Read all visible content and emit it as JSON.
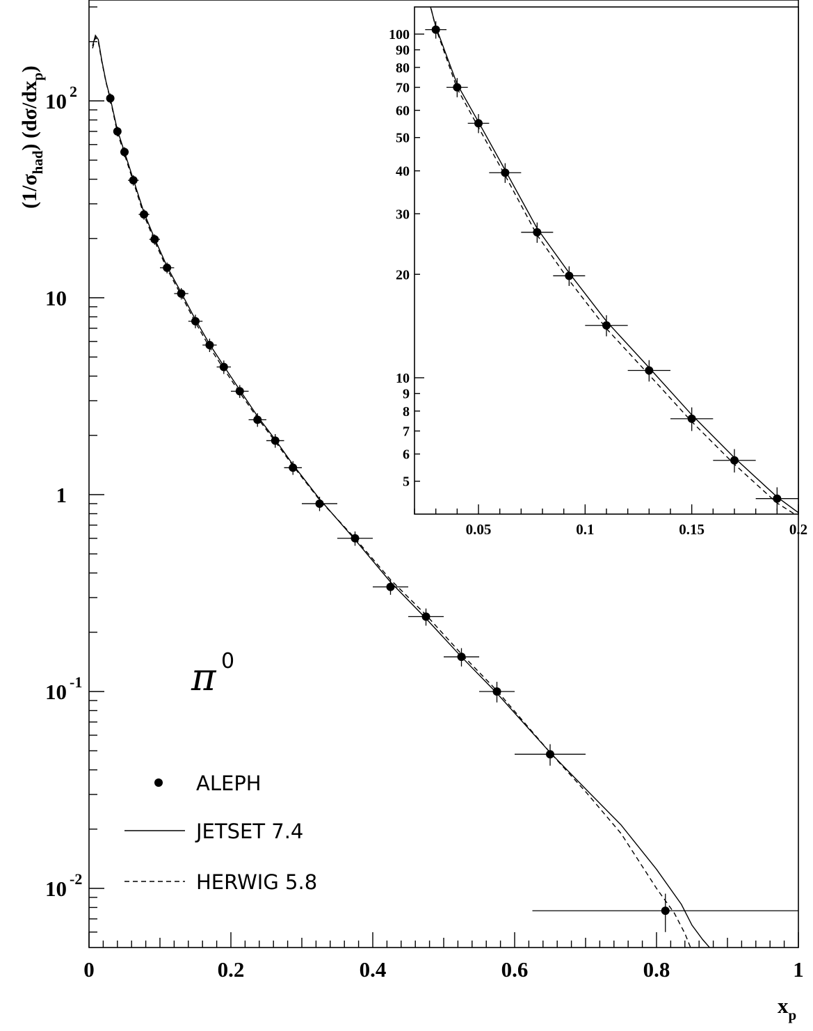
{
  "chart_data": [
    {
      "type": "scatter",
      "scale_y": "log",
      "xlim": [
        0,
        1
      ],
      "ylim": [
        0.005,
        500
      ],
      "xticks": [
        "0",
        "0.2",
        "0.4",
        "0.6",
        "0.8",
        "1"
      ],
      "xlabel_main": "x",
      "xlabel_sub": "p",
      "ylabel": "(1/σhad) (dσ/dxp)",
      "ytick_labels": [
        {
          "value": 100,
          "base": "10",
          "exp": "2"
        },
        {
          "value": 10,
          "base": "10",
          "exp": ""
        },
        {
          "value": 1,
          "base": "1",
          "exp": ""
        },
        {
          "value": 0.1,
          "base": "10",
          "exp": "-1"
        },
        {
          "value": 0.01,
          "base": "10",
          "exp": "-2"
        }
      ],
      "annotation": {
        "particle": "π",
        "charge": "0"
      },
      "legend": {
        "position": "bottom-left",
        "aleph": "ALEPH",
        "jetset": "JETSET 7.4",
        "herwig": "HERWIG 5.8"
      },
      "series": [
        {
          "name": "ALEPH",
          "style": "points",
          "points": [
            {
              "x": 0.03,
              "y": 103,
              "xerr": 0.005,
              "yerr": 6
            },
            {
              "x": 0.04,
              "y": 70,
              "xerr": 0.005,
              "yerr": 4
            },
            {
              "x": 0.05,
              "y": 55,
              "xerr": 0.005,
              "yerr": 3.2
            },
            {
              "x": 0.0625,
              "y": 39.5,
              "xerr": 0.0075,
              "yerr": 2.4
            },
            {
              "x": 0.0775,
              "y": 26.5,
              "xerr": 0.0075,
              "yerr": 1.6
            },
            {
              "x": 0.0925,
              "y": 19.8,
              "xerr": 0.0075,
              "yerr": 1.2
            },
            {
              "x": 0.11,
              "y": 14.2,
              "xerr": 0.01,
              "yerr": 0.9
            },
            {
              "x": 0.13,
              "y": 10.5,
              "xerr": 0.01,
              "yerr": 0.7
            },
            {
              "x": 0.15,
              "y": 7.6,
              "xerr": 0.01,
              "yerr": 0.6
            },
            {
              "x": 0.17,
              "y": 5.75,
              "xerr": 0.01,
              "yerr": 0.45
            },
            {
              "x": 0.19,
              "y": 4.45,
              "xerr": 0.01,
              "yerr": 0.35
            },
            {
              "x": 0.2125,
              "y": 3.35,
              "xerr": 0.0125,
              "yerr": 0.25
            },
            {
              "x": 0.2375,
              "y": 2.4,
              "xerr": 0.0125,
              "yerr": 0.19
            },
            {
              "x": 0.2625,
              "y": 1.88,
              "xerr": 0.0125,
              "yerr": 0.15
            },
            {
              "x": 0.2875,
              "y": 1.37,
              "xerr": 0.0125,
              "yerr": 0.11
            },
            {
              "x": 0.325,
              "y": 0.9,
              "xerr": 0.025,
              "yerr": 0.075
            },
            {
              "x": 0.375,
              "y": 0.6,
              "xerr": 0.025,
              "yerr": 0.05
            },
            {
              "x": 0.425,
              "y": 0.34,
              "xerr": 0.025,
              "yerr": 0.03
            },
            {
              "x": 0.475,
              "y": 0.24,
              "xerr": 0.025,
              "yerr": 0.024
            },
            {
              "x": 0.525,
              "y": 0.15,
              "xerr": 0.025,
              "yerr": 0.016
            },
            {
              "x": 0.575,
              "y": 0.1,
              "xerr": 0.025,
              "yerr": 0.012
            },
            {
              "x": 0.65,
              "y": 0.048,
              "xerr": 0.05,
              "yerr": 0.006
            },
            {
              "x": 0.8125,
              "y": 0.0077,
              "xerr": 0.1875,
              "yerr": 0.0017
            }
          ]
        },
        {
          "name": "JETSET 7.4",
          "style": "solid",
          "points": [
            [
              0.005,
              190
            ],
            [
              0.009,
              215
            ],
            [
              0.013,
              205
            ],
            [
              0.018,
              160
            ],
            [
              0.024,
              125
            ],
            [
              0.03,
              103
            ],
            [
              0.04,
              71
            ],
            [
              0.05,
              55
            ],
            [
              0.0625,
              39.8
            ],
            [
              0.0775,
              27.0
            ],
            [
              0.0925,
              20.0
            ],
            [
              0.11,
              14.4
            ],
            [
              0.13,
              10.6
            ],
            [
              0.15,
              7.75
            ],
            [
              0.17,
              5.8
            ],
            [
              0.19,
              4.5
            ],
            [
              0.2125,
              3.4
            ],
            [
              0.2375,
              2.5
            ],
            [
              0.2625,
              1.9
            ],
            [
              0.2875,
              1.42
            ],
            [
              0.325,
              0.95
            ],
            [
              0.375,
              0.59
            ],
            [
              0.425,
              0.36
            ],
            [
              0.475,
              0.235
            ],
            [
              0.525,
              0.15
            ],
            [
              0.575,
              0.098
            ],
            [
              0.65,
              0.049
            ],
            [
              0.7,
              0.032
            ],
            [
              0.75,
              0.021
            ],
            [
              0.8,
              0.0125
            ],
            [
              0.835,
              0.0083
            ],
            [
              0.85,
              0.0065
            ],
            [
              0.865,
              0.0055
            ],
            [
              0.875,
              0.005
            ],
            [
              0.88,
              0.005
            ]
          ]
        },
        {
          "name": "HERWIG 5.8",
          "style": "dashed",
          "points": [
            [
              0.005,
              185
            ],
            [
              0.009,
              210
            ],
            [
              0.013,
              200
            ],
            [
              0.018,
              158
            ],
            [
              0.024,
              124
            ],
            [
              0.03,
              102
            ],
            [
              0.04,
              69
            ],
            [
              0.05,
              53.5
            ],
            [
              0.0625,
              38.8
            ],
            [
              0.0775,
              26.2
            ],
            [
              0.0925,
              19.4
            ],
            [
              0.11,
              14.0
            ],
            [
              0.13,
              10.3
            ],
            [
              0.15,
              7.5
            ],
            [
              0.17,
              5.6
            ],
            [
              0.19,
              4.35
            ],
            [
              0.2125,
              3.3
            ],
            [
              0.2375,
              2.45
            ],
            [
              0.2625,
              1.86
            ],
            [
              0.2875,
              1.4
            ],
            [
              0.325,
              0.94
            ],
            [
              0.375,
              0.6
            ],
            [
              0.425,
              0.37
            ],
            [
              0.475,
              0.245
            ],
            [
              0.525,
              0.155
            ],
            [
              0.575,
              0.101
            ],
            [
              0.65,
              0.049
            ],
            [
              0.7,
              0.031
            ],
            [
              0.75,
              0.019
            ],
            [
              0.8,
              0.01
            ],
            [
              0.825,
              0.0075
            ],
            [
              0.84,
              0.0059
            ],
            [
              0.848,
              0.005
            ]
          ]
        }
      ]
    },
    {
      "type": "scatter",
      "scale_y": "log",
      "xlim": [
        0.02,
        0.2
      ],
      "ylim": [
        4.2,
        120
      ],
      "xticks": [
        "0.05",
        "0.1",
        "0.15",
        "0.2"
      ],
      "yticks": [
        "5",
        "6",
        "7",
        "8",
        "9",
        "10",
        "20",
        "30",
        "40",
        "50",
        "60",
        "70",
        "80",
        "90",
        "100"
      ],
      "series": [
        {
          "name": "ALEPH",
          "style": "points",
          "points": [
            {
              "x": 0.03,
              "y": 103,
              "xerr": 0.005,
              "yerr": 6
            },
            {
              "x": 0.04,
              "y": 70,
              "xerr": 0.005,
              "yerr": 4.5
            },
            {
              "x": 0.05,
              "y": 55,
              "xerr": 0.005,
              "yerr": 3.5
            },
            {
              "x": 0.0625,
              "y": 39.5,
              "xerr": 0.0075,
              "yerr": 2.6
            },
            {
              "x": 0.0775,
              "y": 26.5,
              "xerr": 0.0075,
              "yerr": 1.8
            },
            {
              "x": 0.0925,
              "y": 19.8,
              "xerr": 0.0075,
              "yerr": 1.3
            },
            {
              "x": 0.11,
              "y": 14.2,
              "xerr": 0.01,
              "yerr": 1.0
            },
            {
              "x": 0.13,
              "y": 10.5,
              "xerr": 0.01,
              "yerr": 0.75
            },
            {
              "x": 0.15,
              "y": 7.6,
              "xerr": 0.01,
              "yerr": 0.6
            },
            {
              "x": 0.17,
              "y": 5.75,
              "xerr": 0.01,
              "yerr": 0.45
            },
            {
              "x": 0.19,
              "y": 4.45,
              "xerr": 0.01,
              "yerr": 0.35
            }
          ]
        },
        {
          "name": "JETSET 7.4",
          "style": "solid",
          "points": [
            [
              0.026,
              130
            ],
            [
              0.03,
              105
            ],
            [
              0.04,
              71.5
            ],
            [
              0.05,
              55.5
            ],
            [
              0.0625,
              40.2
            ],
            [
              0.0775,
              27.2
            ],
            [
              0.0925,
              20.2
            ],
            [
              0.11,
              14.6
            ],
            [
              0.13,
              10.7
            ],
            [
              0.15,
              7.8
            ],
            [
              0.17,
              5.85
            ],
            [
              0.19,
              4.5
            ],
            [
              0.2,
              4.05
            ]
          ]
        },
        {
          "name": "HERWIG 5.8",
          "style": "dashed",
          "points": [
            [
              0.026,
              132
            ],
            [
              0.03,
              104
            ],
            [
              0.04,
              69.5
            ],
            [
              0.05,
              53.5
            ],
            [
              0.0625,
              38.8
            ],
            [
              0.0775,
              26.0
            ],
            [
              0.0925,
              19.2
            ],
            [
              0.11,
              13.9
            ],
            [
              0.13,
              10.2
            ],
            [
              0.15,
              7.45
            ],
            [
              0.17,
              5.6
            ],
            [
              0.19,
              4.32
            ],
            [
              0.2,
              3.95
            ]
          ]
        }
      ]
    }
  ]
}
